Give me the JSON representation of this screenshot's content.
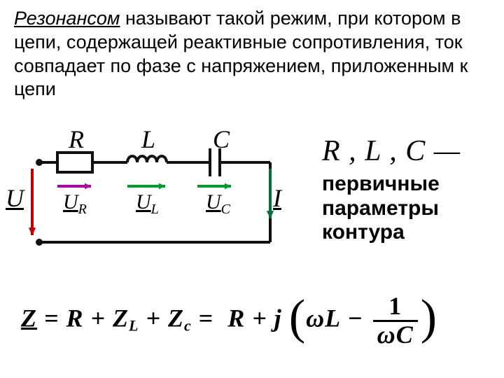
{
  "title": {
    "emph": "Резонансом",
    "rest": " называют такой режим, при котором в цепи, содержащей реактивные сопротивления, ток совпадает по фазе с напряжением, приложенным к цепи"
  },
  "params": {
    "line1": "R , L , C —",
    "heading": "первичные параметры контура"
  },
  "impedance": {
    "eq1_left": "Z",
    "eq1_mid": " = R + Z",
    "sub_l": "L",
    "eq1_mid2": " + Z",
    "sub_c": "c",
    "eq1_right": " = ",
    "rpart": "R + j",
    "omegaL": "ωL",
    "minus": " − ",
    "frac_num": "1",
    "frac_den": "ωC"
  },
  "circuit": {
    "R": "R",
    "L": "L",
    "C": "C",
    "U": "U",
    "I": "I",
    "UR": "U",
    "UR_sub": "R",
    "UL": "U",
    "UL_sub": "L",
    "UC": "U",
    "UC_sub": "C",
    "colors": {
      "wire": "#111111",
      "node": "#111111",
      "U_arrow": "#c00000",
      "UR_arrow": "#b000b0",
      "UL_arrow": "#009d2e",
      "UC_arrow": "#009d2e",
      "I_arrow": "#007038"
    },
    "stroke_width": 4,
    "node_radius": 5
  }
}
